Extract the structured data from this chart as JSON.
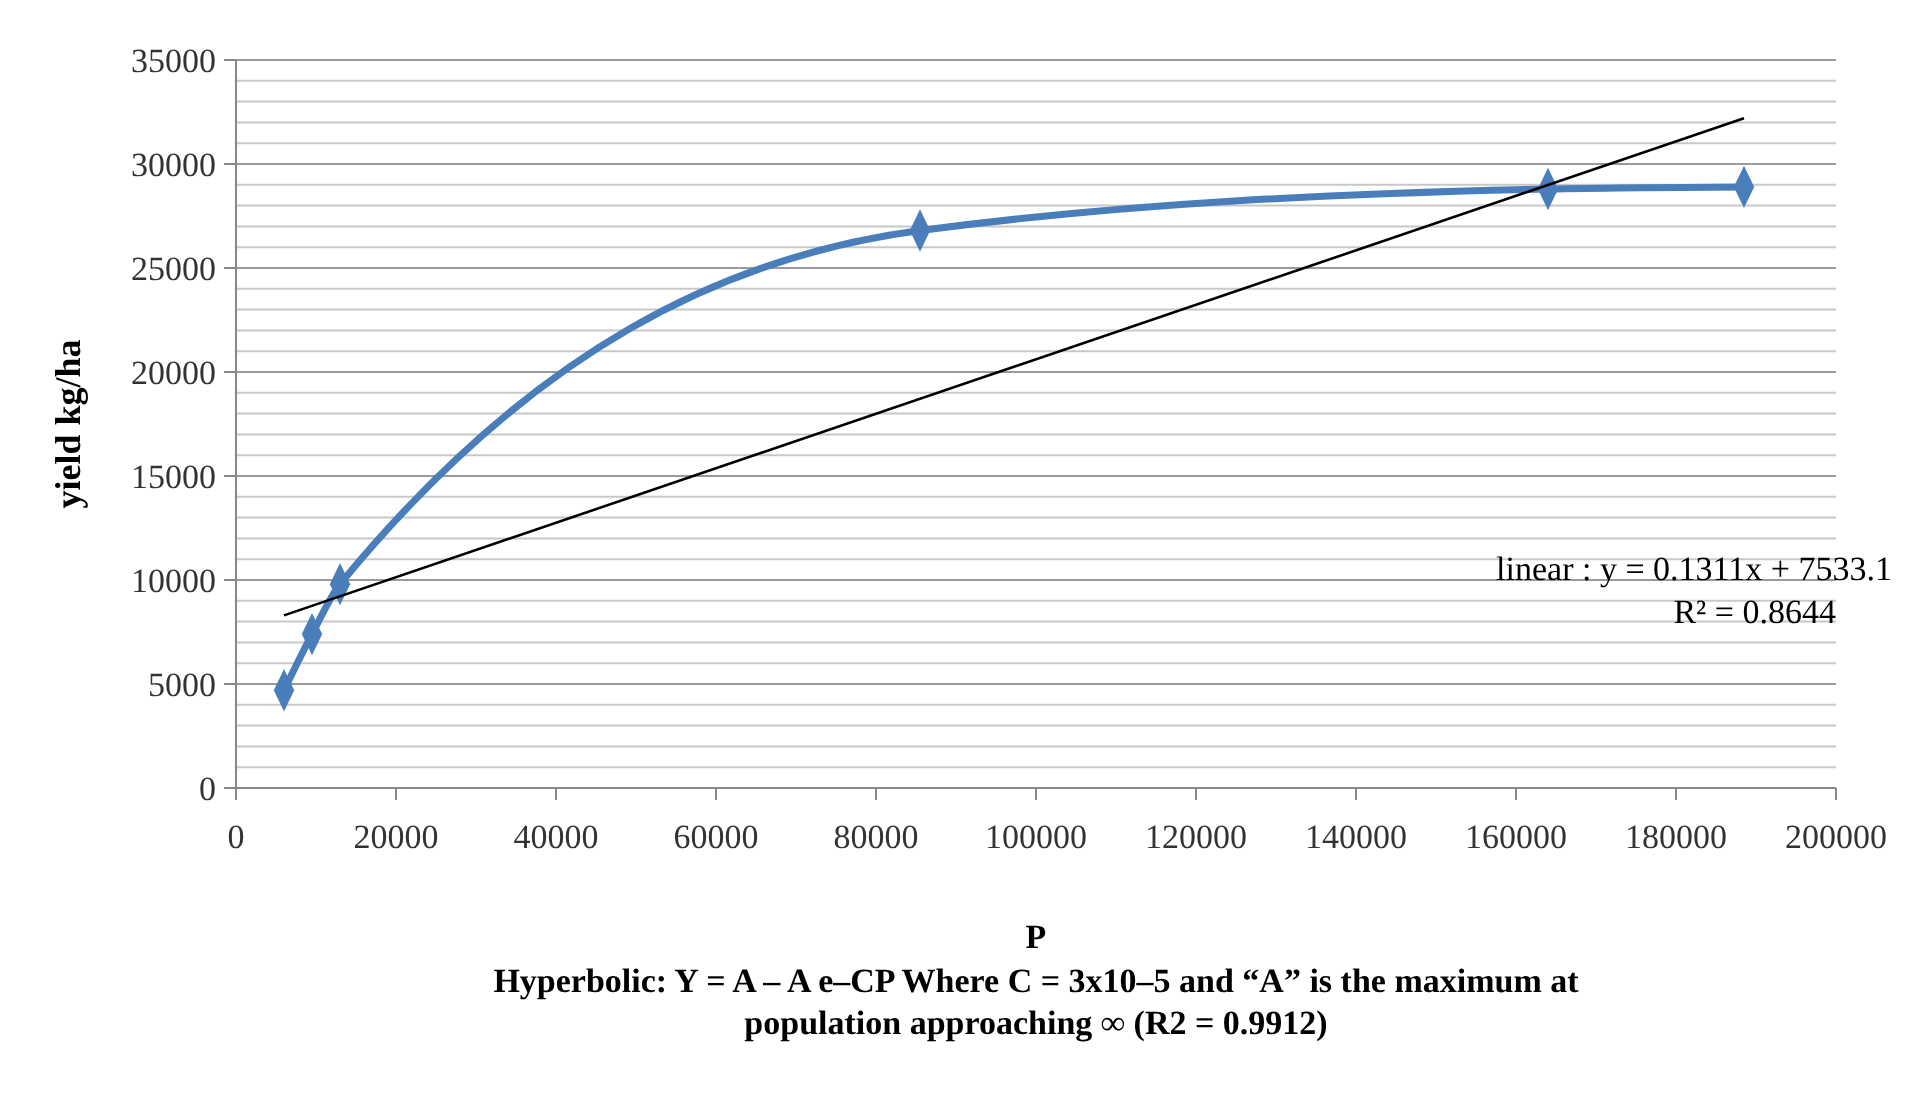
{
  "chart_data": {
    "type": "line",
    "xlabel": "P",
    "ylabel": "yield kg/ha",
    "xlim": [
      0,
      200000
    ],
    "xticks": [
      0,
      20000,
      40000,
      60000,
      80000,
      100000,
      120000,
      140000,
      160000,
      180000,
      200000
    ],
    "ylim": [
      0,
      35000
    ],
    "yticks": [
      0,
      5000,
      10000,
      15000,
      20000,
      25000,
      30000,
      35000
    ],
    "grid": "y",
    "series": [
      {
        "color": "#4a7ebb",
        "marker": "diamond",
        "x": [
          6000,
          9500,
          13000,
          85500,
          164000,
          188500
        ],
        "values": [
          4700,
          7400,
          9800,
          26800,
          28800,
          28900
        ]
      },
      {
        "type": "line",
        "color": "#000000",
        "marker": "none",
        "x": [
          6000,
          188500
        ],
        "values": [
          8300,
          32200
        ]
      }
    ],
    "annotations": [
      "linear : y = 0.1311x + 7533.1",
      "R² = 0.8644",
      "Hyperbolic: Y = A – A e–CP  Where C = 3x10–5  and “A” is the maximum at population  approaching ∞ (R2 = 0.9912)"
    ]
  }
}
